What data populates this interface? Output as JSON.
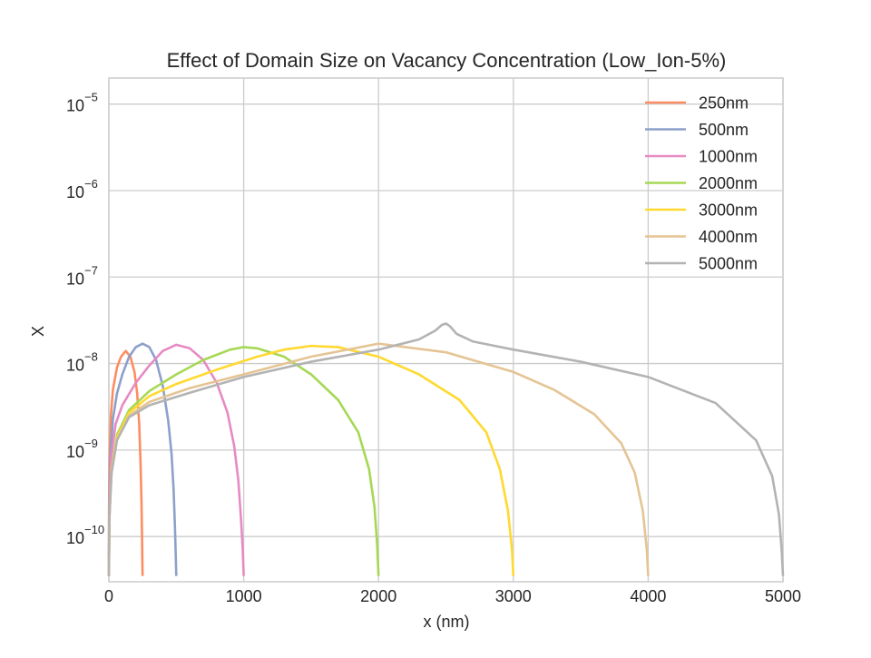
{
  "chart_data": {
    "type": "line",
    "title": "Effect of Domain Size on Vacancy Concentration (Low_Ion-5%)",
    "xlabel": "x (nm)",
    "ylabel": "X",
    "xlim": [
      0,
      5000
    ],
    "ylim": [
      3e-11,
      2e-05
    ],
    "yscale": "log",
    "grid": true,
    "legend_position": "top-right",
    "x_ticks": [
      0,
      1000,
      2000,
      3000,
      4000,
      5000
    ],
    "x_tick_labels": [
      "0",
      "1000",
      "2000",
      "3000",
      "4000",
      "5000"
    ],
    "y_ticks": [
      1e-10,
      1e-09,
      1e-08,
      1e-07,
      1e-06,
      1e-05
    ],
    "y_tick_labels": [
      {
        "base": "10",
        "exp": "−10"
      },
      {
        "base": "10",
        "exp": "−9"
      },
      {
        "base": "10",
        "exp": "−8"
      },
      {
        "base": "10",
        "exp": "−7"
      },
      {
        "base": "10",
        "exp": "−6"
      },
      {
        "base": "10",
        "exp": "−5"
      }
    ],
    "series": [
      {
        "name": "250nm",
        "color": "#fc8d62",
        "x": [
          0,
          1,
          5,
          15,
          30,
          60,
          90,
          125,
          160,
          190,
          210,
          225,
          235,
          242,
          246,
          248.5,
          250
        ],
        "y": [
          3.5e-11,
          2e-10,
          8e-10,
          2.5e-09,
          5e-09,
          9e-09,
          1.2e-08,
          1.4e-08,
          1.2e-08,
          8e-09,
          4.5e-09,
          2e-09,
          7e-10,
          2.5e-10,
          1e-10,
          5e-11,
          3.5e-11
        ]
      },
      {
        "name": "500nm",
        "color": "#8da0cb",
        "x": [
          0,
          2,
          10,
          30,
          60,
          100,
          150,
          200,
          250,
          300,
          350,
          400,
          440,
          465,
          480,
          490,
          496,
          500
        ],
        "y": [
          3.5e-11,
          2e-10,
          8e-10,
          2.3e-09,
          4.5e-09,
          7.5e-09,
          1.2e-08,
          1.55e-08,
          1.7e-08,
          1.55e-08,
          1.1e-08,
          5.5e-09,
          2.2e-09,
          9e-10,
          3.5e-10,
          1.3e-10,
          6e-11,
          3.5e-11
        ]
      },
      {
        "name": "1000nm",
        "color": "#e78ac3",
        "x": [
          0,
          3,
          15,
          50,
          100,
          200,
          300,
          400,
          500,
          600,
          700,
          800,
          880,
          930,
          960,
          980,
          993,
          1000
        ],
        "y": [
          3.5e-11,
          2e-10,
          8e-10,
          2e-09,
          3.3e-09,
          6e-09,
          9.5e-09,
          1.4e-08,
          1.65e-08,
          1.5e-08,
          1.1e-08,
          6e-09,
          2.7e-09,
          1.1e-09,
          4.5e-10,
          1.6e-10,
          7e-11,
          3.5e-11
        ]
      },
      {
        "name": "2000nm",
        "color": "#a6d854",
        "x": [
          0,
          5,
          20,
          60,
          150,
          300,
          500,
          700,
          900,
          1000,
          1100,
          1300,
          1500,
          1700,
          1850,
          1930,
          1970,
          1990,
          2000
        ],
        "y": [
          3.5e-11,
          1.8e-10,
          6e-10,
          1.5e-09,
          2.9e-09,
          4.8e-09,
          7.5e-09,
          1.1e-08,
          1.45e-08,
          1.55e-08,
          1.5e-08,
          1.2e-08,
          7.5e-09,
          3.8e-09,
          1.6e-09,
          6e-10,
          2.2e-10,
          8e-11,
          3.5e-11
        ]
      },
      {
        "name": "3000nm",
        "color": "#ffd92f",
        "x": [
          0,
          5,
          20,
          60,
          150,
          300,
          500,
          800,
          1100,
          1300,
          1500,
          1700,
          2000,
          2300,
          2600,
          2800,
          2900,
          2960,
          2990,
          3000
        ],
        "y": [
          3.5e-11,
          1.8e-10,
          6e-10,
          1.4e-09,
          2.7e-09,
          4.2e-09,
          5.8e-09,
          8.5e-09,
          1.2e-08,
          1.45e-08,
          1.6e-08,
          1.55e-08,
          1.2e-08,
          7.5e-09,
          3.8e-09,
          1.6e-09,
          6e-10,
          2e-10,
          7e-11,
          3.5e-11
        ]
      },
      {
        "name": "4000nm",
        "color": "#e5c494",
        "x": [
          0,
          5,
          20,
          60,
          150,
          300,
          600,
          1000,
          1500,
          2000,
          2500,
          3000,
          3300,
          3600,
          3800,
          3900,
          3960,
          3990,
          4000
        ],
        "y": [
          3.5e-11,
          1.8e-10,
          5.5e-10,
          1.3e-09,
          2.5e-09,
          3.6e-09,
          5.2e-09,
          7.5e-09,
          1.2e-08,
          1.7e-08,
          1.35e-08,
          8e-09,
          5e-09,
          2.6e-09,
          1.2e-09,
          5.5e-10,
          2e-10,
          7e-11,
          3.5e-11
        ]
      },
      {
        "name": "5000nm",
        "color": "#b3b3b3",
        "x": [
          0,
          5,
          20,
          60,
          150,
          300,
          600,
          1000,
          1500,
          2000,
          2300,
          2420,
          2470,
          2500,
          2530,
          2580,
          2700,
          3000,
          3500,
          4000,
          4500,
          4800,
          4920,
          4970,
          4990,
          5000
        ],
        "y": [
          3.5e-11,
          1.8e-10,
          5.5e-10,
          1.3e-09,
          2.4e-09,
          3.3e-09,
          4.6e-09,
          7e-09,
          1.05e-08,
          1.45e-08,
          1.9e-08,
          2.4e-08,
          2.8e-08,
          2.9e-08,
          2.7e-08,
          2.2e-08,
          1.8e-08,
          1.45e-08,
          1.05e-08,
          7e-09,
          3.5e-09,
          1.3e-09,
          5e-10,
          1.8e-10,
          7e-11,
          3.5e-11
        ]
      }
    ]
  }
}
